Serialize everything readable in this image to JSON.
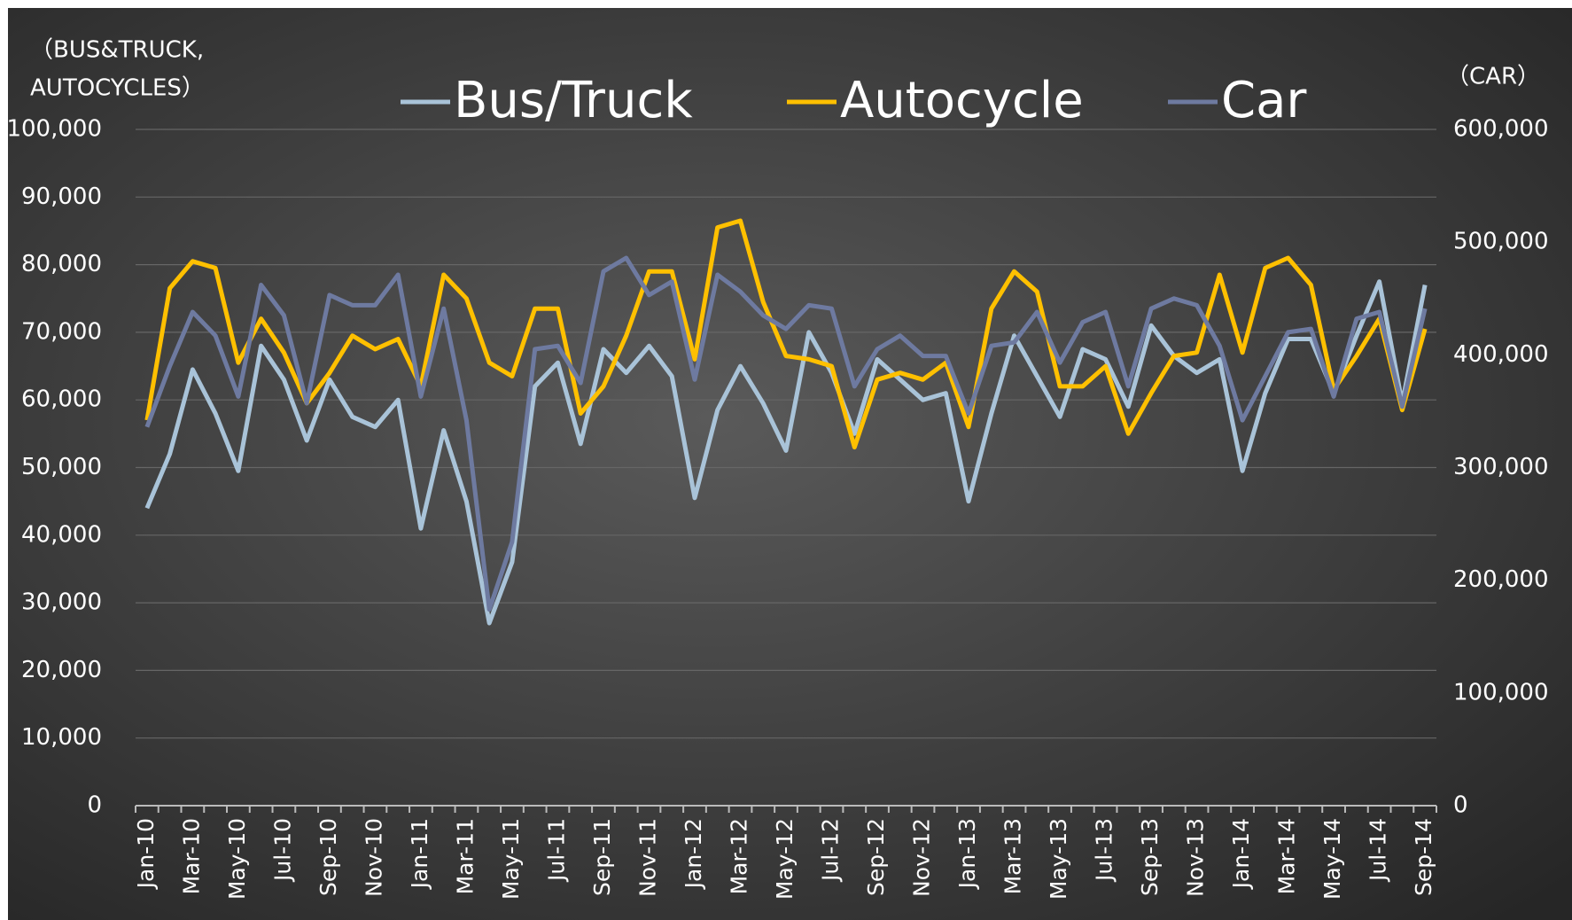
{
  "chart_data": {
    "type": "line",
    "ylabel_lines": [
      "（BUS&TRUCK,",
      "AUTOCYCLES）"
    ],
    "y2label": "（CAR）",
    "categories": [
      "Jan-10",
      null,
      "Mar-10",
      null,
      "May-10",
      null,
      "Jul-10",
      null,
      "Sep-10",
      null,
      "Nov-10",
      null,
      "Jan-11",
      null,
      "Mar-11",
      null,
      "May-11",
      null,
      "Jul-11",
      null,
      "Sep-11",
      null,
      "Nov-11",
      null,
      "Jan-12",
      null,
      "Mar-12",
      null,
      "May-12",
      null,
      "Jul-12",
      null,
      "Sep-12",
      null,
      "Nov-12",
      null,
      "Jan-13",
      null,
      "Mar-13",
      null,
      "May-13",
      null,
      "Jul-13",
      null,
      "Sep-13",
      null,
      "Nov-13",
      null,
      "Jan-14",
      null,
      "Mar-14",
      null,
      "May-14",
      null,
      "Jul-14",
      null,
      "Sep-14"
    ],
    "series": [
      {
        "name": "Bus/Truck",
        "color": "#a9c3d8",
        "axis": "y",
        "values": [
          44000,
          52000,
          64500,
          58000,
          49500,
          68000,
          63000,
          54000,
          63000,
          57500,
          56000,
          60000,
          41000,
          55500,
          45000,
          27000,
          36000,
          62000,
          65500,
          53500,
          67500,
          64000,
          68000,
          63500,
          45500,
          58500,
          65000,
          59500,
          52500,
          70000,
          64000,
          55000,
          66000,
          63000,
          60000,
          61000,
          45000,
          58000,
          69500,
          63500,
          57500,
          67500,
          66000,
          59000,
          71000,
          66500,
          64000,
          66000,
          49500,
          61000,
          69000,
          69000,
          61000,
          69500,
          77500,
          59500,
          77000
        ]
      },
      {
        "name": "Autocycle",
        "color": "#ffc000",
        "axis": "y",
        "values": [
          57000,
          76500,
          80500,
          79500,
          65500,
          72000,
          67000,
          59500,
          64000,
          69500,
          67500,
          69000,
          62000,
          78500,
          75000,
          65500,
          63500,
          73500,
          73500,
          58000,
          62000,
          69500,
          79000,
          79000,
          66000,
          85500,
          86500,
          74500,
          66500,
          66000,
          65000,
          53000,
          63000,
          64000,
          63000,
          65500,
          56000,
          73500,
          79000,
          76000,
          62000,
          62000,
          65000,
          55000,
          61000,
          66500,
          67000,
          78500,
          67000,
          79500,
          81000,
          77000,
          61500,
          66500,
          72000,
          58500,
          70500
        ]
      },
      {
        "name": "Car",
        "color": "#6e7aa0",
        "axis": "y2",
        "values": [
          336000,
          390000,
          438000,
          417000,
          363000,
          462000,
          435000,
          357000,
          453000,
          444000,
          444000,
          471000,
          363000,
          441000,
          342000,
          174000,
          234000,
          405000,
          408000,
          375000,
          474000,
          486000,
          453000,
          465000,
          378000,
          471000,
          456000,
          435000,
          423000,
          444000,
          441000,
          372000,
          405000,
          417000,
          399000,
          399000,
          348000,
          408000,
          411000,
          438000,
          393000,
          429000,
          438000,
          372000,
          441000,
          450000,
          444000,
          408000,
          342000,
          381000,
          420000,
          423000,
          363000,
          432000,
          438000,
          354000,
          441000
        ]
      }
    ],
    "ylim": [
      0,
      100000
    ],
    "yticks": [
      0,
      {
        "value": 10000,
        "label": "10,000"
      },
      {
        "value": 20000,
        "label": "20,000"
      },
      {
        "value": 30000,
        "label": "30,000"
      },
      {
        "value": 40000,
        "label": "40,000"
      },
      {
        "value": 50000,
        "label": "50,000"
      },
      {
        "value": 60000,
        "label": "60,000"
      },
      {
        "value": 70000,
        "label": "70,000"
      },
      {
        "value": 80000,
        "label": "80,000"
      },
      {
        "value": 90000,
        "label": "90,000"
      },
      {
        "value": 100000,
        "label": "100,000"
      }
    ],
    "y2lim": [
      0,
      600000
    ],
    "y2ticks": [
      0,
      {
        "value": 100000,
        "label": "100,000"
      },
      {
        "value": 200000,
        "label": "200,000"
      },
      {
        "value": 300000,
        "label": "300,000"
      },
      {
        "value": 400000,
        "label": "400,000"
      },
      {
        "value": 500000,
        "label": "500,000"
      },
      {
        "value": 600000,
        "label": "600,000"
      }
    ],
    "grid": true
  }
}
